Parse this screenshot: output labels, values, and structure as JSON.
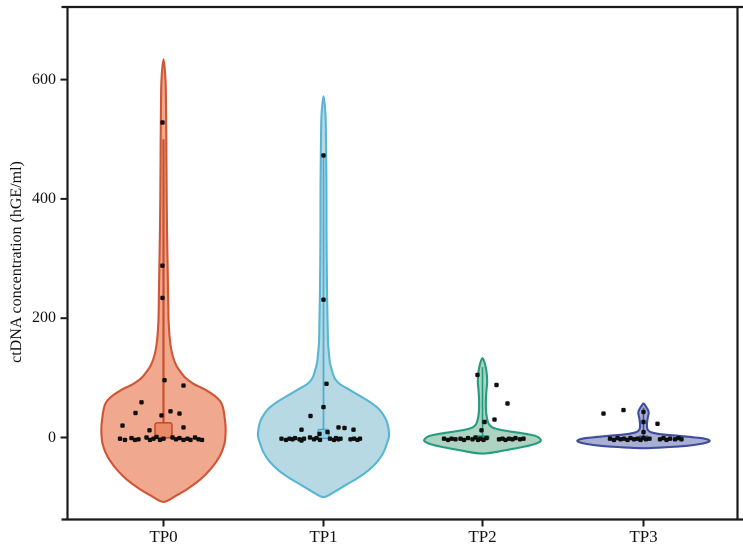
{
  "chart_data": {
    "type": "violin",
    "title": "",
    "ylabel": "ctDNA concentration (hGE/ml)",
    "xlabel": "",
    "categories": [
      "TP0",
      "TP1",
      "TP2",
      "TP3"
    ],
    "yticks": [
      600,
      400,
      200,
      0
    ],
    "ytick_labels": [
      "600",
      "400",
      "200",
      "0"
    ],
    "ylim": [
      -137,
      722
    ],
    "grid": false,
    "legend": "none",
    "axis_color": "#1a1a1a",
    "point_color": "#0f0f0f",
    "groups": [
      {
        "name": "TP0",
        "fill": "#f0a88e",
        "stroke": "#d05535",
        "violin_range": [
          -108,
          634
        ],
        "profile": [
          [
            634,
            0
          ],
          [
            600,
            2
          ],
          [
            560,
            2.5
          ],
          [
            500,
            2.8
          ],
          [
            450,
            3
          ],
          [
            400,
            3.2
          ],
          [
            350,
            3.5
          ],
          [
            300,
            4
          ],
          [
            250,
            4.5
          ],
          [
            200,
            5
          ],
          [
            170,
            6
          ],
          [
            150,
            7.5
          ],
          [
            135,
            9.5
          ],
          [
            120,
            13
          ],
          [
            108,
            18
          ],
          [
            100,
            22
          ],
          [
            90,
            30
          ],
          [
            80,
            42
          ],
          [
            70,
            51
          ],
          [
            60,
            57
          ],
          [
            50,
            59.5
          ],
          [
            35,
            61
          ],
          [
            20,
            62
          ],
          [
            5,
            62
          ],
          [
            -10,
            61
          ],
          [
            -25,
            58
          ],
          [
            -40,
            53
          ],
          [
            -55,
            46
          ],
          [
            -70,
            37
          ],
          [
            -85,
            25
          ],
          [
            -97,
            13
          ],
          [
            -108,
            0
          ]
        ],
        "median_box": {
          "v": 12,
          "w": 17,
          "h": 15,
          "rx": 2,
          "fill": "#eb8a66",
          "stroke": "#c64f2e",
          "sw": 1.6
        },
        "center_line": {
          "v1": 500,
          "v2": 16,
          "color": "#c7502f",
          "w": 2.2
        },
        "points": [
          [
            -1,
            528
          ],
          [
            -1,
            288
          ],
          [
            -1,
            234
          ],
          [
            1,
            96
          ],
          [
            20,
            87
          ],
          [
            -22,
            59
          ],
          [
            7,
            44
          ],
          [
            -28,
            41
          ],
          [
            16,
            40
          ],
          [
            -2,
            37
          ],
          [
            -41,
            20
          ],
          [
            20,
            17
          ],
          [
            -14,
            12
          ],
          [
            -43.5,
            -2
          ],
          [
            -38.5,
            -4
          ],
          [
            -32,
            -1
          ],
          [
            -28.5,
            -4
          ],
          [
            -25,
            -3
          ],
          [
            -17,
            0
          ],
          [
            -13.5,
            -4
          ],
          [
            -10,
            -2
          ],
          [
            -7,
            1
          ],
          [
            -3.5,
            -4
          ],
          [
            0,
            -2
          ],
          [
            9,
            0
          ],
          [
            12.5,
            -3
          ],
          [
            16,
            -1
          ],
          [
            20,
            -4
          ],
          [
            24,
            -2
          ],
          [
            27,
            -4
          ],
          [
            31.5,
            0
          ],
          [
            35,
            -3
          ],
          [
            38.5,
            -4
          ]
        ]
      },
      {
        "name": "TP1",
        "fill": "#b7d9e4",
        "stroke": "#58b6d4",
        "violin_range": [
          -100,
          572
        ],
        "profile": [
          [
            572,
            0
          ],
          [
            540,
            2
          ],
          [
            500,
            2.5
          ],
          [
            450,
            2.8
          ],
          [
            400,
            3
          ],
          [
            350,
            3
          ],
          [
            300,
            3.2
          ],
          [
            250,
            3.5
          ],
          [
            200,
            4
          ],
          [
            160,
            4.5
          ],
          [
            140,
            5.5
          ],
          [
            125,
            6.5
          ],
          [
            112,
            8.5
          ],
          [
            100,
            11
          ],
          [
            90,
            16
          ],
          [
            80,
            26
          ],
          [
            70,
            36
          ],
          [
            60,
            46
          ],
          [
            50,
            54
          ],
          [
            40,
            59
          ],
          [
            28,
            63
          ],
          [
            15,
            65
          ],
          [
            2,
            65.5
          ],
          [
            -12,
            63
          ],
          [
            -25,
            60
          ],
          [
            -40,
            54
          ],
          [
            -55,
            45
          ],
          [
            -68,
            34
          ],
          [
            -80,
            22
          ],
          [
            -92,
            10
          ],
          [
            -100,
            0
          ]
        ],
        "median_box": {
          "v": 6,
          "w": 11,
          "h": 9,
          "rx": 1.5,
          "fill": "#8fcfe2",
          "stroke": "#4aa6c6",
          "sw": 1.4
        },
        "center_line": {
          "v1": 470,
          "v2": 8,
          "color": "#4fadd0",
          "w": 1.8
        },
        "points": [
          [
            0,
            473
          ],
          [
            0,
            231
          ],
          [
            3,
            90
          ],
          [
            0,
            51
          ],
          [
            -13,
            36
          ],
          [
            15,
            17
          ],
          [
            21,
            16
          ],
          [
            -22,
            13
          ],
          [
            30,
            13
          ],
          [
            4,
            9
          ],
          [
            -4,
            6
          ],
          [
            -42,
            -2
          ],
          [
            -37.5,
            -4
          ],
          [
            -34,
            -2
          ],
          [
            -31,
            -3
          ],
          [
            -28.5,
            -1
          ],
          [
            -24,
            -3
          ],
          [
            -22,
            -5
          ],
          [
            -19.5,
            -2
          ],
          [
            -13.5,
            0
          ],
          [
            -9.5,
            -3
          ],
          [
            -7,
            -1
          ],
          [
            -3.5,
            -4
          ],
          [
            6.5,
            -2
          ],
          [
            10.5,
            -4
          ],
          [
            12.5,
            -1
          ],
          [
            15,
            -3
          ],
          [
            17,
            -2
          ],
          [
            27,
            -3
          ],
          [
            30.5,
            -2
          ],
          [
            34,
            -4
          ],
          [
            36.5,
            -2
          ]
        ]
      },
      {
        "name": "TP2",
        "fill": "#aed3c2",
        "stroke": "#259d7d",
        "violin_range": [
          -27,
          133
        ],
        "profile": [
          [
            133,
            0
          ],
          [
            126,
            2
          ],
          [
            118,
            3.2
          ],
          [
            110,
            4
          ],
          [
            102,
            4.5
          ],
          [
            95,
            4.7
          ],
          [
            88,
            4.5
          ],
          [
            80,
            4
          ],
          [
            70,
            3.6
          ],
          [
            60,
            3.4
          ],
          [
            50,
            3.4
          ],
          [
            40,
            3.8
          ],
          [
            32,
            4.5
          ],
          [
            26,
            5.5
          ],
          [
            21,
            7
          ],
          [
            17,
            10
          ],
          [
            14,
            15
          ],
          [
            11,
            24
          ],
          [
            8,
            36
          ],
          [
            5,
            47
          ],
          [
            2,
            54
          ],
          [
            -2,
            57.5
          ],
          [
            -6,
            58
          ],
          [
            -11,
            52
          ],
          [
            -16,
            40
          ],
          [
            -21,
            24
          ],
          [
            -27,
            0
          ]
        ],
        "median_box": {
          "v": 0,
          "w": 13,
          "h": 3.5,
          "rx": 1,
          "fill": "#1f9c7c",
          "stroke": "#1f9c7c",
          "sw": 1
        },
        "center_line": {
          "v1": 118,
          "v2": 2,
          "color": "#1f9c7c",
          "w": 1.6
        },
        "points": [
          [
            -5,
            105
          ],
          [
            14,
            88
          ],
          [
            25,
            57
          ],
          [
            12,
            30
          ],
          [
            2,
            26
          ],
          [
            -1,
            12
          ],
          [
            -38.5,
            -2
          ],
          [
            -34.5,
            -4
          ],
          [
            -31,
            -2
          ],
          [
            -27,
            -3
          ],
          [
            -22,
            -2
          ],
          [
            -18.5,
            -4
          ],
          [
            -14.5,
            -1
          ],
          [
            -10,
            -3
          ],
          [
            -7,
            0
          ],
          [
            -4.5,
            -4
          ],
          [
            -2,
            -2
          ],
          [
            1,
            -4
          ],
          [
            4,
            -1
          ],
          [
            16.5,
            -3
          ],
          [
            20,
            -2
          ],
          [
            23,
            -4
          ],
          [
            26.5,
            -2
          ],
          [
            30,
            -3
          ],
          [
            33,
            -1
          ],
          [
            37.5,
            -3
          ],
          [
            41,
            -2
          ]
        ]
      },
      {
        "name": "TP3",
        "fill": "#a8afd4",
        "stroke": "#3f4d9c",
        "violin_range": [
          -18,
          57
        ],
        "profile": [
          [
            57,
            0
          ],
          [
            53,
            2
          ],
          [
            49,
            3.5
          ],
          [
            45,
            4.8
          ],
          [
            41,
            5.2
          ],
          [
            37,
            4.8
          ],
          [
            33,
            4.2
          ],
          [
            28,
            3.8
          ],
          [
            24,
            3.5
          ],
          [
            20,
            3.4
          ],
          [
            16,
            3.6
          ],
          [
            13,
            4.2
          ],
          [
            10,
            6
          ],
          [
            8,
            9
          ],
          [
            6,
            15
          ],
          [
            4,
            26
          ],
          [
            2,
            40
          ],
          [
            0,
            52
          ],
          [
            -2,
            61
          ],
          [
            -5,
            66
          ],
          [
            -8,
            64
          ],
          [
            -11,
            56
          ],
          [
            -14,
            42
          ],
          [
            -16,
            26
          ],
          [
            -18,
            0
          ]
        ],
        "median_box": {
          "v": 0,
          "w": 9,
          "h": 3,
          "rx": 1,
          "fill": "#3f4d9c",
          "stroke": "#3f4d9c",
          "sw": 1
        },
        "center_line": {
          "v1": 50,
          "v2": 2,
          "color": "#3f4d9c",
          "w": 1.6
        },
        "points": [
          [
            -40,
            40
          ],
          [
            -20,
            46
          ],
          [
            14,
            23
          ],
          [
            0,
            43
          ],
          [
            0,
            26
          ],
          [
            0,
            9
          ],
          [
            -33.5,
            -2
          ],
          [
            -29.5,
            -4
          ],
          [
            -26,
            -1
          ],
          [
            -23,
            -3
          ],
          [
            -19.5,
            -2
          ],
          [
            -16,
            -4
          ],
          [
            -13,
            -1
          ],
          [
            -9.5,
            -3
          ],
          [
            -6,
            -2
          ],
          [
            -3,
            -4
          ],
          [
            0,
            -1
          ],
          [
            2.5,
            -3
          ],
          [
            6,
            -2
          ],
          [
            16.5,
            -3
          ],
          [
            20,
            -1
          ],
          [
            23,
            -4
          ],
          [
            26.5,
            -2
          ],
          [
            31.5,
            -3
          ],
          [
            35,
            -1
          ],
          [
            38,
            -3
          ]
        ]
      }
    ]
  }
}
